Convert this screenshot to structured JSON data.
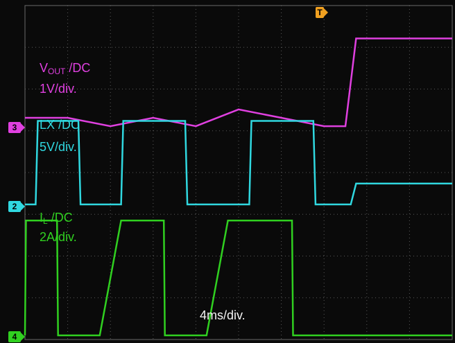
{
  "chart_data": {
    "type": "line",
    "x_unit_label": "4ms/div.",
    "series": [
      {
        "channel": "3",
        "label_main": "V",
        "label_sub": "OUT",
        "label_rest": " /DC",
        "scale": "1V/div.",
        "color": "#e040e0",
        "x": [
          0,
          4,
          8,
          12,
          16,
          20,
          24,
          28,
          30,
          31,
          32,
          36,
          40
        ],
        "y": [
          0,
          0,
          -0.2,
          0,
          -0.2,
          0.2,
          0,
          -0.2,
          -0.2,
          1.9,
          1.9,
          1.9,
          1.9
        ]
      },
      {
        "channel": "2",
        "label_main": "LX",
        "label_sub": "",
        "label_rest": " /DC",
        "scale": "5V/div.",
        "color": "#30d8e0",
        "x": [
          0,
          1,
          1.2,
          5,
          5.2,
          9,
          9.2,
          15,
          15.2,
          21,
          21.2,
          27,
          27.2,
          30.5,
          31,
          40
        ],
        "y": [
          0,
          0,
          10,
          10,
          0,
          0,
          10,
          10,
          0,
          0,
          10,
          10,
          0,
          0,
          2.5,
          2.5
        ]
      },
      {
        "channel": "4",
        "label_main": "I",
        "label_sub": "L",
        "label_rest": " /DC",
        "scale": "2A/div.",
        "color": "#30d020",
        "x": [
          0,
          0.1,
          3,
          3.1,
          7,
          9,
          13,
          13.1,
          17,
          19,
          25,
          25.1,
          29,
          31,
          40
        ],
        "y": [
          0,
          5.5,
          5.5,
          0,
          0,
          5.5,
          5.5,
          0,
          0,
          5.5,
          5.5,
          0,
          0,
          0,
          0
        ]
      }
    ],
    "trigger_marker": "T",
    "grid": true
  }
}
